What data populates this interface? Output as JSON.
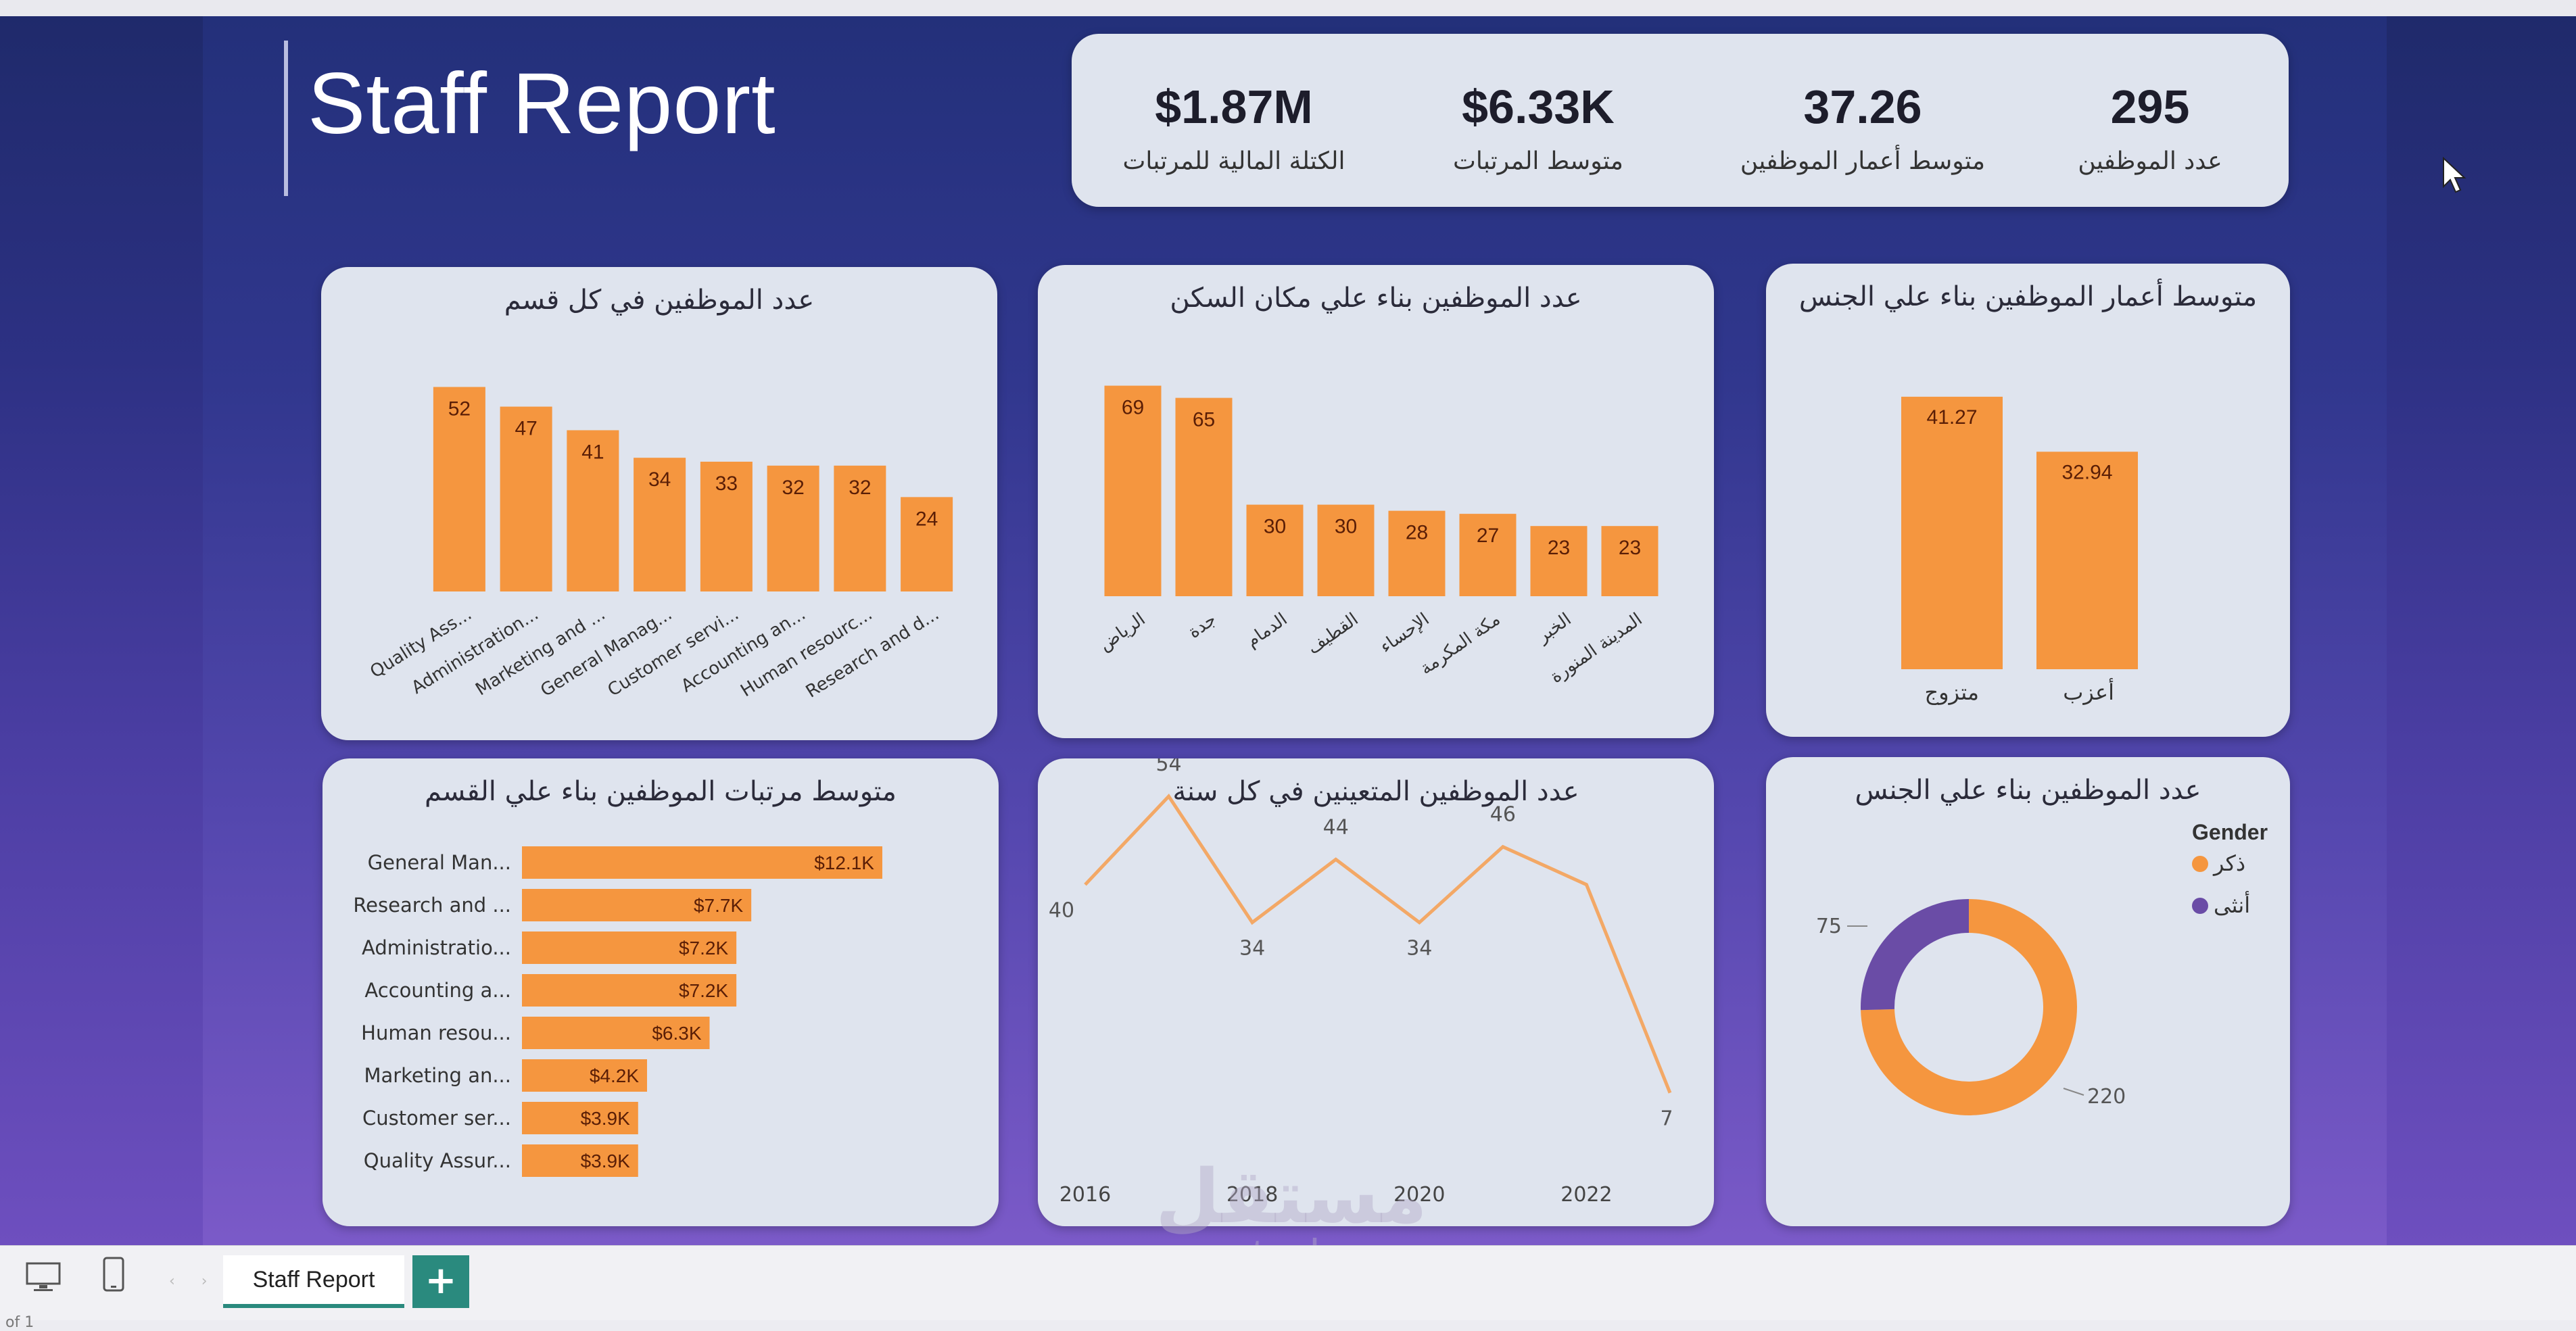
{
  "report": {
    "title": "Staff Report"
  },
  "kpis": [
    {
      "value": "$1.87M",
      "label": "الكتلة المالية للمرتبات"
    },
    {
      "value": "$6.33K",
      "label": "متوسط المرتبات"
    },
    {
      "value": "37.26",
      "label": "متوسط أعمار الموظفين"
    },
    {
      "value": "295",
      "label": "عدد الموظفين"
    }
  ],
  "charts": {
    "dept_count": {
      "title": "عدد الموظفين في كل قسم",
      "chart_data": {
        "type": "bar",
        "categories": [
          "Quality Ass...",
          "Administration...",
          "Marketing and ...",
          "General Manag...",
          "Customer servi...",
          "Accounting an...",
          "Human resourc...",
          "Research and d..."
        ],
        "values": [
          52,
          47,
          41,
          34,
          33,
          32,
          32,
          24
        ],
        "ylim": [
          0,
          55
        ]
      }
    },
    "residence_count": {
      "title": "عدد الموظفين بناء علي مكان السكن",
      "chart_data": {
        "type": "bar",
        "categories": [
          "الرياض",
          "جدة",
          "الدمام",
          "القطيف",
          "الإحساء",
          "مكة المكرمة",
          "الخبر",
          "المدينة المنورة"
        ],
        "values": [
          69,
          65,
          30,
          30,
          28,
          27,
          23,
          23
        ],
        "ylim": [
          0,
          72
        ]
      }
    },
    "age_by_marital": {
      "title": "متوسط أعمار الموظفين بناء علي الجنس",
      "chart_data": {
        "type": "bar",
        "categories": [
          "متزوج",
          "أعزب"
        ],
        "values": [
          41.27,
          32.94
        ],
        "ylim": [
          0,
          43
        ]
      }
    },
    "salary_by_dept": {
      "title": "متوسط مرتبات الموظفين بناء علي القسم",
      "chart_data": {
        "type": "bar",
        "orientation": "horizontal",
        "categories": [
          "General Man...",
          "Research and ...",
          "Administratio...",
          "Accounting a...",
          "Human resou...",
          "Marketing an...",
          "Customer ser...",
          "Quality Assur..."
        ],
        "values": [
          12.1,
          7.7,
          7.2,
          7.2,
          6.3,
          4.2,
          3.9,
          3.9
        ],
        "labels": [
          "$12.1K",
          "$7.7K",
          "$7.2K",
          "$7.2K",
          "$6.3K",
          "$4.2K",
          "$3.9K",
          "$3.9K"
        ],
        "xlim": [
          0,
          12.6
        ]
      }
    },
    "hires_by_year": {
      "title": "عدد الموظفين المتعينين في كل سنة",
      "chart_data": {
        "type": "line",
        "x": [
          2016,
          2017,
          2018,
          2019,
          2020,
          2021,
          2022,
          2023
        ],
        "values": [
          40,
          54,
          34,
          44,
          34,
          46,
          40,
          7
        ],
        "point_labels": [
          "40",
          "54",
          "34",
          "44",
          "34",
          "46",
          "",
          "7"
        ],
        "x_ticks": [
          "2016",
          "2018",
          "2020",
          "2022"
        ],
        "ylim": [
          0,
          60
        ]
      }
    },
    "gender_count": {
      "title": "عدد الموظفين بناء علي الجنس",
      "legend_title": "Gender",
      "chart_data": {
        "type": "pie",
        "variant": "donut",
        "labels": [
          "ذكر",
          "أنثى"
        ],
        "values": [
          220,
          75
        ],
        "colors": [
          "#f5963f",
          "#6a4ca6"
        ],
        "legend": "top-right"
      }
    }
  },
  "colors": {
    "bar": "#f5963f",
    "bar_dark": "#e8822c",
    "line": "#f3a866",
    "label": "#5a1e06"
  },
  "tabbar": {
    "page_tab": "Staff Report",
    "add_tab": "+",
    "page_indicator": "of 1"
  },
  "icons": {
    "desktop": "desktop-view-icon",
    "mobile": "mobile-view-icon",
    "cursor": "mouse-cursor-icon"
  },
  "watermark": {
    "arabic": "مستقل",
    "latin": "mostaql.com"
  }
}
